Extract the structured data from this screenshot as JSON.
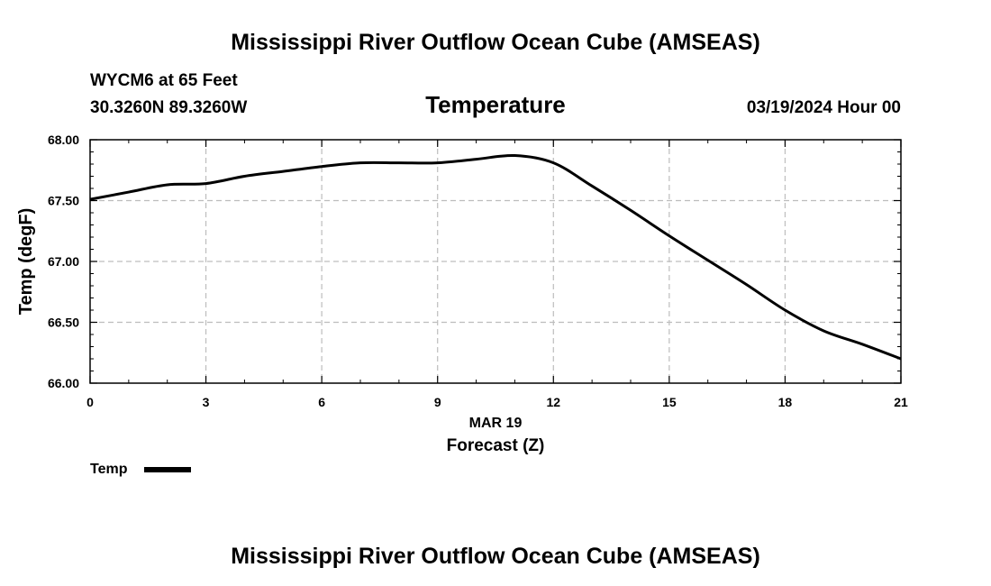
{
  "header": {
    "title": "Mississippi River Outflow Ocean Cube (AMSEAS)",
    "station": "WYCM6 at 65 Feet",
    "coords": "30.3260N  89.3260W",
    "panel_title": "Temperature",
    "datetime": "03/19/2024 Hour 00"
  },
  "footer": {
    "title": "Mississippi River Outflow Ocean Cube (AMSEAS)"
  },
  "chart_data": {
    "type": "line",
    "title": "Temperature",
    "xlabel": "Forecast (Z)",
    "xlabel_date": "MAR 19",
    "ylabel": "Temp (degF)",
    "xlim": [
      0,
      21
    ],
    "ylim": [
      66.0,
      68.0
    ],
    "x_ticks": [
      0,
      3,
      6,
      9,
      12,
      15,
      18,
      21
    ],
    "y_ticks": [
      "66.00",
      "66.50",
      "67.00",
      "67.50",
      "68.00"
    ],
    "grid": true,
    "legend_position": "bottom-left",
    "series": [
      {
        "name": "Temp",
        "color": "#000000",
        "x": [
          0,
          1,
          2,
          3,
          4,
          5,
          6,
          7,
          8,
          9,
          10,
          11,
          12,
          13,
          14,
          15,
          16,
          17,
          18,
          19,
          20,
          21
        ],
        "values": [
          67.51,
          67.57,
          67.63,
          67.64,
          67.7,
          67.74,
          67.78,
          67.81,
          67.81,
          67.81,
          67.84,
          67.87,
          67.81,
          67.62,
          67.42,
          67.21,
          67.01,
          66.81,
          66.6,
          66.43,
          66.32,
          66.2
        ]
      }
    ]
  }
}
